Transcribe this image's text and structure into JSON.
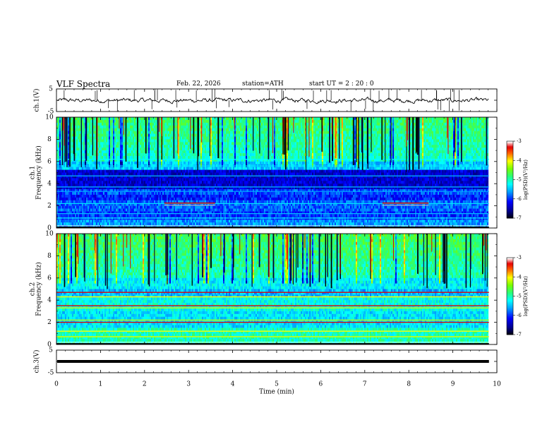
{
  "header": {
    "title": "VLF  Spectra",
    "date": "Feb. 22, 2026",
    "station": "station=ATH",
    "start_ut": "start  UT  =   2 : 20 : 0"
  },
  "chart_data": [
    {
      "type": "line",
      "panel": "ch1-waveform",
      "ylabel": "ch.1(V)",
      "ylim": [
        -5,
        5
      ],
      "yticks": [
        "5",
        "-5"
      ],
      "xlim": [
        0,
        10
      ],
      "baseline": 0,
      "trace_end_min": 9.82
    },
    {
      "type": "heatmap",
      "panel": "ch1-spectrogram",
      "ylabel": [
        "ch.1",
        "Frequency  (kHz)"
      ],
      "ylim": [
        0,
        10
      ],
      "yticks": [
        "0",
        "2",
        "4",
        "6",
        "8",
        "10"
      ],
      "xlim": [
        0,
        10
      ],
      "data_end_min": 9.82,
      "colorbar": {
        "label": "log(PSD)(V²/Hz)",
        "range": [
          -7,
          -3
        ],
        "ticks": [
          "-3",
          "-4",
          "-5",
          "-6",
          "-7"
        ]
      },
      "bands_khz": [
        4.3,
        2.2,
        1.2,
        0.6
      ],
      "red_lines": [
        {
          "freq_khz": 2.25,
          "t_start": 2.45,
          "t_end": 3.6
        },
        {
          "freq_khz": 2.25,
          "t_start": 7.4,
          "t_end": 8.45
        }
      ]
    },
    {
      "type": "heatmap",
      "panel": "ch2-spectrogram",
      "ylabel": [
        "ch.2",
        "Frequency  (kHz)"
      ],
      "ylim": [
        0,
        10
      ],
      "yticks": [
        "0",
        "2",
        "4",
        "6",
        "8",
        "10"
      ],
      "xlim": [
        0,
        10
      ],
      "data_end_min": 9.82,
      "colorbar": {
        "label": "log(PSD)(V²/Hz)",
        "range": [
          -7,
          -3
        ],
        "ticks": [
          "-3",
          "-4",
          "-5",
          "-6",
          "-7"
        ]
      },
      "red_lines_khz": [
        4.7,
        3.5,
        2.0
      ]
    },
    {
      "type": "line",
      "panel": "ch3-waveform",
      "ylabel": "ch.3(V)",
      "ylim": [
        -5,
        5
      ],
      "yticks": [
        "5",
        "-5"
      ],
      "xlim": [
        0,
        10
      ],
      "constant_value": 0,
      "trace_end_min": 9.82
    }
  ],
  "x_axis": {
    "label": "Time  (min)",
    "ticks": [
      "0",
      "1",
      "2",
      "3",
      "4",
      "5",
      "6",
      "7",
      "8",
      "9",
      "10"
    ],
    "range": [
      0,
      10
    ]
  }
}
